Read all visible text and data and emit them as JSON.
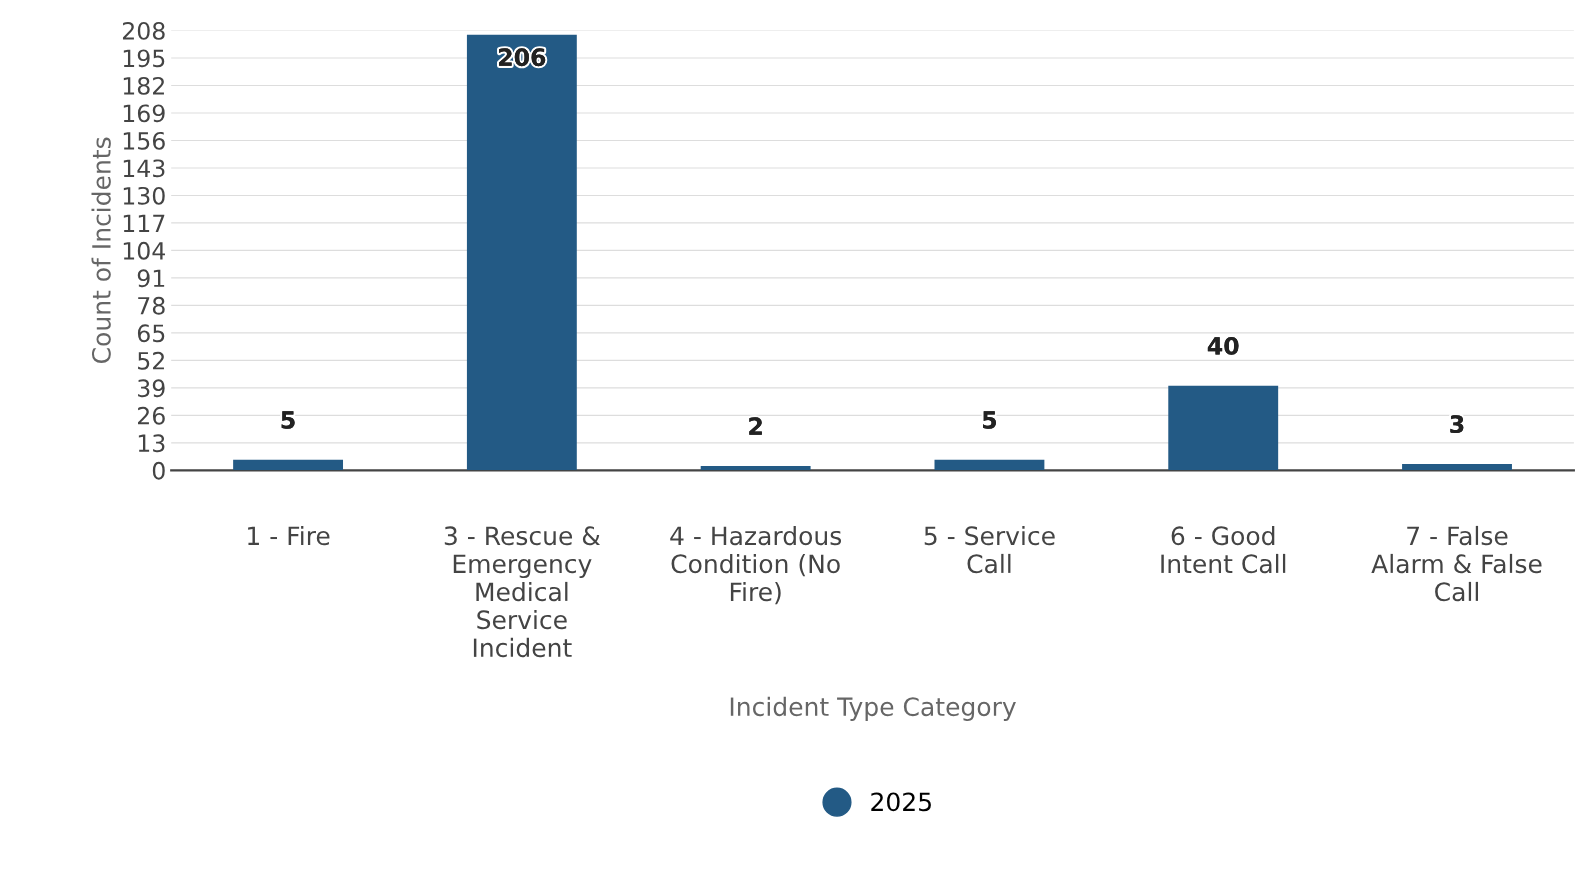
{
  "chart_data": {
    "type": "bar",
    "xlabel": "Incident Type Category",
    "ylabel": "Count of Incidents",
    "categories": [
      "1 - Fire",
      "3 - Rescue &\nEmergency\nMedical\nService\nIncident",
      "4 - Hazardous\nCondition (No\nFire)",
      "5 - Service\nCall",
      "6 - Good\nIntent Call",
      "7 - False\nAlarm & False\nCall"
    ],
    "series": [
      {
        "name": "2025",
        "color": "#235a85",
        "values": [
          5,
          206,
          2,
          5,
          40,
          3
        ]
      }
    ],
    "ylim": [
      0,
      208
    ],
    "yticks": [
      0,
      13,
      26,
      39,
      52,
      65,
      78,
      91,
      104,
      117,
      130,
      143,
      156,
      169,
      182,
      195,
      208
    ],
    "grid": "y",
    "legend": "bottom",
    "data_labels": true
  }
}
